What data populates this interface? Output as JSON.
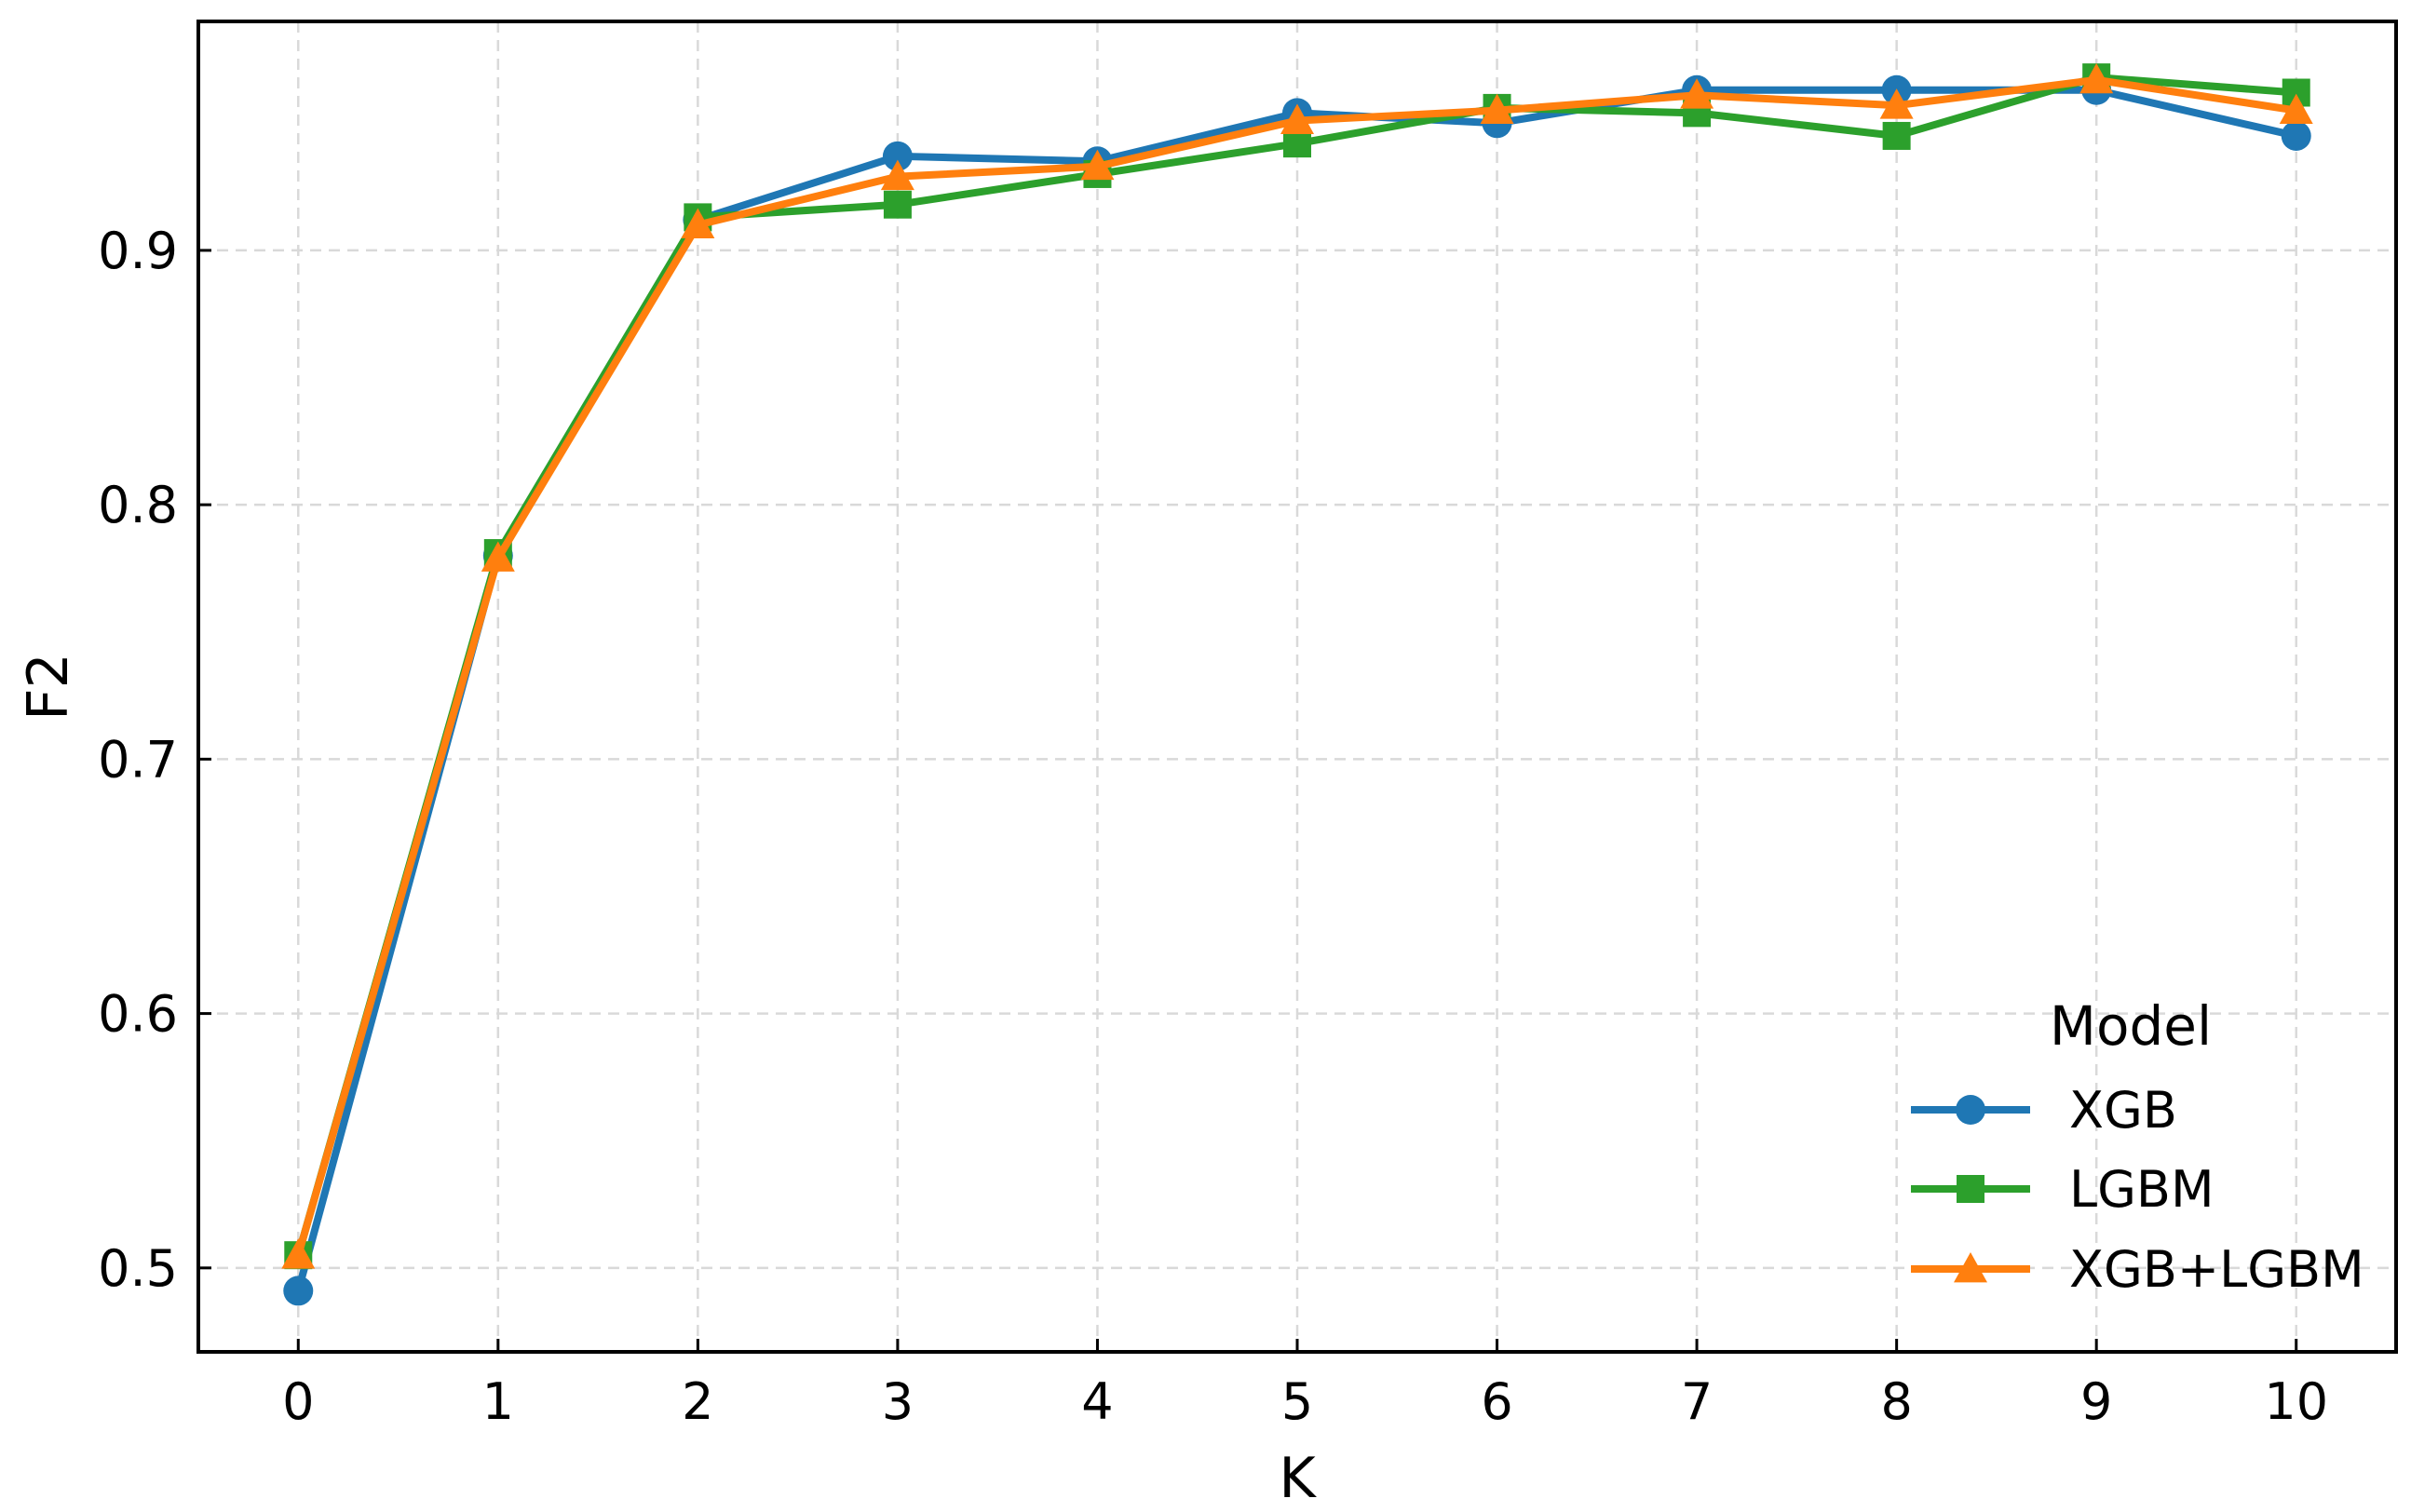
{
  "chart_data": {
    "type": "line",
    "xlabel": "K",
    "ylabel": "F2",
    "x": [
      0,
      1,
      2,
      3,
      4,
      5,
      6,
      7,
      8,
      9,
      10
    ],
    "xticks": [
      "0",
      "1",
      "2",
      "3",
      "4",
      "5",
      "6",
      "7",
      "8",
      "9",
      "10"
    ],
    "yticks": [
      "0.5",
      "0.6",
      "0.7",
      "0.8",
      "0.9"
    ],
    "xlim": [
      -0.5,
      10.5
    ],
    "ylim": [
      0.467,
      0.99
    ],
    "grid": true,
    "legend": {
      "title": "Model",
      "placement": "lower-right"
    },
    "series": [
      {
        "name": "XGB",
        "color": "#1f77b4",
        "marker": "circle",
        "values": [
          0.491,
          0.78,
          0.912,
          0.937,
          0.935,
          0.954,
          0.95,
          0.963,
          0.963,
          0.963,
          0.945
        ]
      },
      {
        "name": "LGBM",
        "color": "#2ca02c",
        "marker": "square",
        "values": [
          0.505,
          0.781,
          0.913,
          0.918,
          0.93,
          0.942,
          0.956,
          0.954,
          0.945,
          0.968,
          0.962
        ]
      },
      {
        "name": "XGB+LGBM",
        "color": "#ff7f0e",
        "marker": "triangle",
        "values": [
          0.505,
          0.779,
          0.91,
          0.929,
          0.933,
          0.951,
          0.955,
          0.961,
          0.957,
          0.967,
          0.955
        ]
      }
    ]
  }
}
